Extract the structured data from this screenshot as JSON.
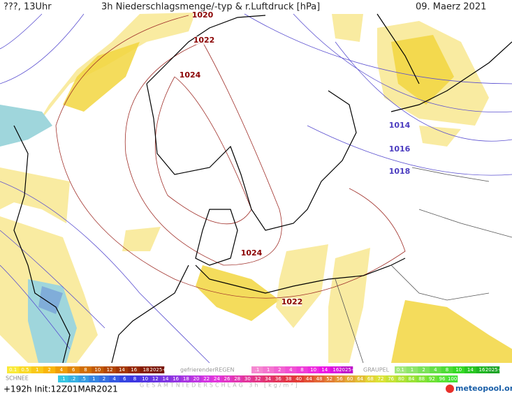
{
  "header": {
    "left": "???, 13Uhr",
    "title": "3h Niederschlagsmenge/-typ & r.Luftdruck [hPa]",
    "date": "09. Maerz 2021"
  },
  "isobar_labels": [
    "1020",
    "1022",
    "1024",
    "1024",
    "1022",
    "1014",
    "1016",
    "1018"
  ],
  "legend": {
    "rain": {
      "ticks": [
        "0.1",
        "0.5",
        "1",
        "2",
        "4",
        "6",
        "8",
        "10",
        "12",
        "14",
        "16",
        "18",
        "2025+"
      ]
    },
    "freezing_rain": {
      "label": "gefrierenderREGEN",
      "ticks": [
        ".1",
        "1",
        "2",
        "4",
        "8",
        "10",
        "14",
        "16",
        "2025+"
      ]
    },
    "graupel": {
      "label": "GRAUPEL",
      "ticks": [
        "0.1",
        "1",
        "2",
        "4",
        "8",
        "10",
        "14",
        "16",
        "2025+"
      ]
    },
    "snow": {
      "label": "SCHNEE",
      "ticks": [
        ".1",
        ".2",
        ".5",
        "1",
        "2",
        "4",
        "6",
        "8",
        "10",
        "12",
        "14",
        "16",
        "18",
        "20",
        "22",
        "24",
        "26",
        "28",
        "30",
        "32",
        "34",
        "36",
        "38",
        "40",
        "44",
        "48",
        "52",
        "56",
        "60",
        "64",
        "68",
        "72",
        "76",
        "80",
        "84",
        "88",
        "92",
        "96",
        "100"
      ]
    },
    "total_label": "GESAMTNIEDERSCHLAG 3h [kg/m²]"
  },
  "footer": {
    "run": "+192h Init:12Z01MAR2021",
    "logo": "meteopool.org"
  }
}
